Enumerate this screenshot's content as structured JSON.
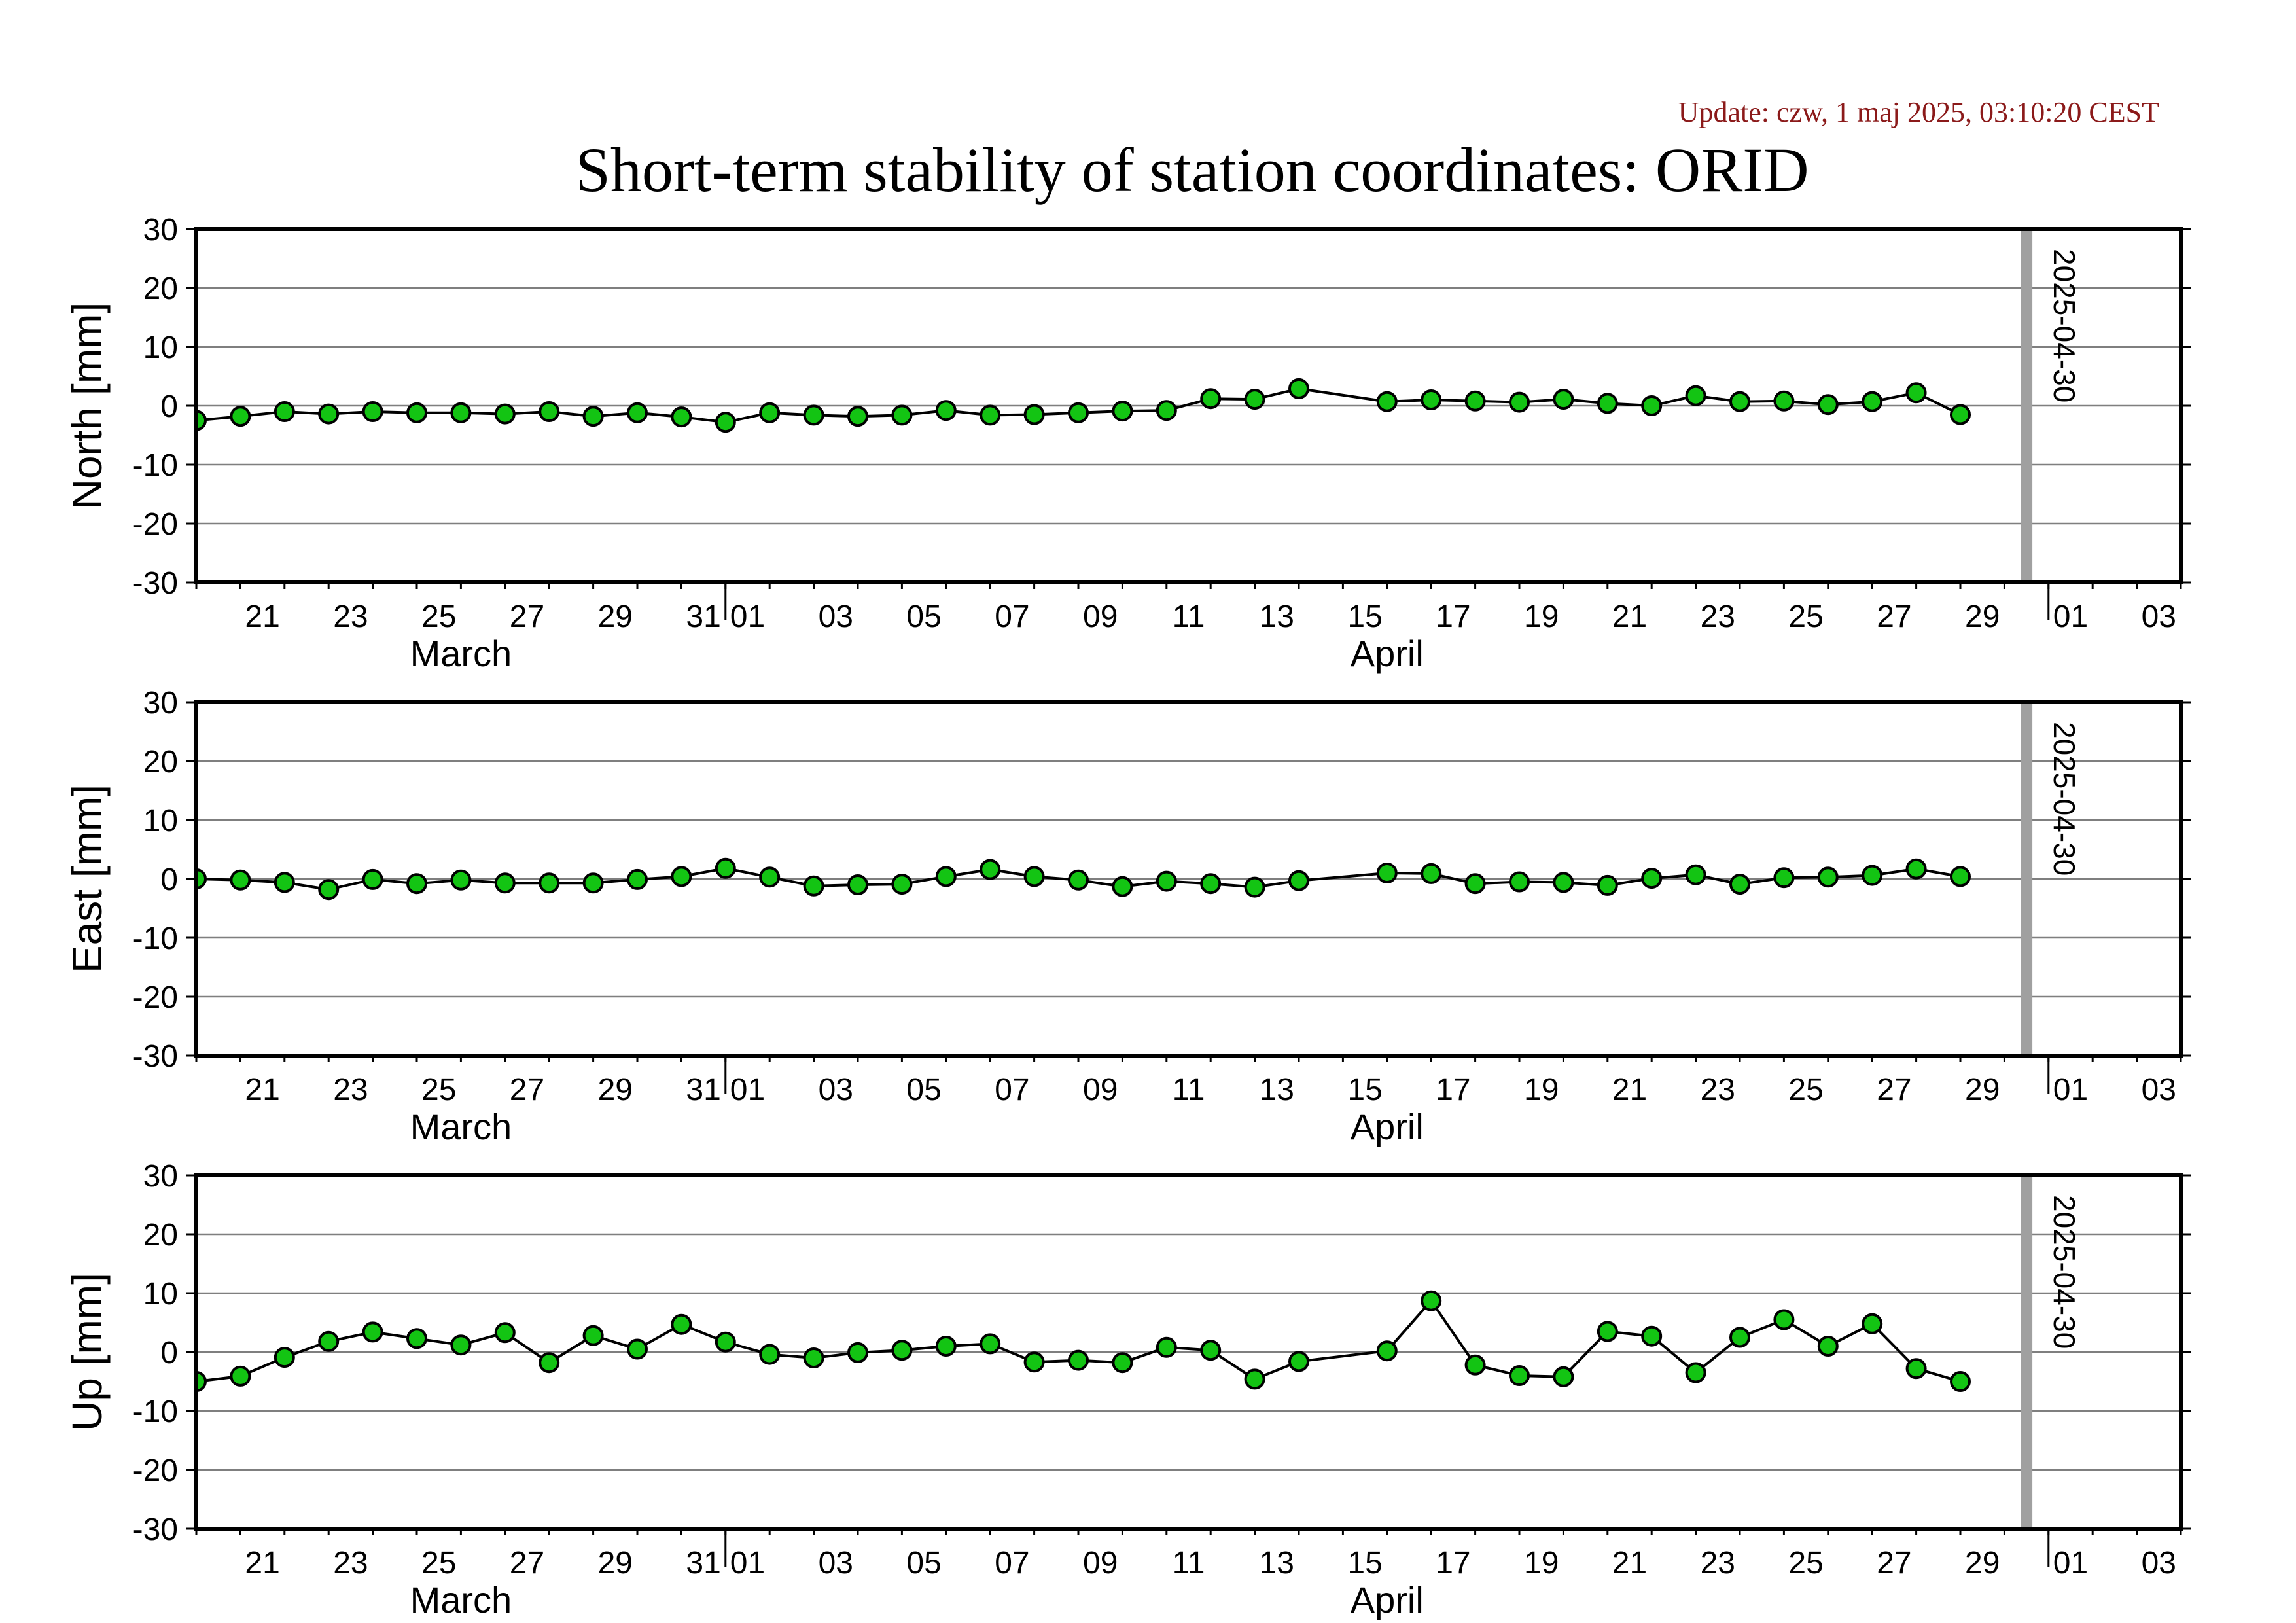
{
  "update_text": "Update: czw, 1 maj 2025, 03:10:20 CEST",
  "title": "Short-term stability of station coordinates: ORID",
  "colors": {
    "marker_fill": "#13c413",
    "marker_edge": "#000000",
    "line": "#000000",
    "grid": "#7f7f7f",
    "vline": "#a0a0a0",
    "update": "#8b1a1a"
  },
  "chart_data": [
    {
      "type": "line",
      "ylabel": "North [mm]",
      "ylim": [
        -30,
        30
      ],
      "yticks": [
        30,
        20,
        10,
        0,
        -10,
        -20,
        -30
      ],
      "x_range": [
        "2025-03-20",
        "2025-05-04"
      ],
      "x_tick_labels": [
        "21",
        "23",
        "25",
        "27",
        "29",
        "31",
        "01",
        "03",
        "05",
        "07",
        "09",
        "11",
        "13",
        "15",
        "17",
        "19",
        "21",
        "23",
        "25",
        "27",
        "29",
        "01",
        "03"
      ],
      "month_labels": [
        "March",
        "April"
      ],
      "marker_label": "2025-04-30",
      "grid": true,
      "x": [
        "2025-03-20",
        "2025-03-21",
        "2025-03-22",
        "2025-03-23",
        "2025-03-24",
        "2025-03-25",
        "2025-03-26",
        "2025-03-27",
        "2025-03-28",
        "2025-03-29",
        "2025-03-30",
        "2025-03-31",
        "2025-04-01",
        "2025-04-02",
        "2025-04-03",
        "2025-04-04",
        "2025-04-05",
        "2025-04-06",
        "2025-04-07",
        "2025-04-08",
        "2025-04-09",
        "2025-04-10",
        "2025-04-11",
        "2025-04-12",
        "2025-04-13",
        "2025-04-14",
        "2025-04-16",
        "2025-04-17",
        "2025-04-18",
        "2025-04-19",
        "2025-04-20",
        "2025-04-21",
        "2025-04-22",
        "2025-04-23",
        "2025-04-24",
        "2025-04-25",
        "2025-04-26",
        "2025-04-27",
        "2025-04-28",
        "2025-04-29"
      ],
      "values": [
        -2.5,
        -1.8,
        -1.0,
        -1.4,
        -1.0,
        -1.2,
        -1.2,
        -1.4,
        -1.0,
        -1.8,
        -1.2,
        -1.9,
        -2.8,
        -1.2,
        -1.6,
        -1.8,
        -1.6,
        -0.8,
        -1.6,
        -1.5,
        -1.2,
        -0.9,
        -0.8,
        1.2,
        1.1,
        2.9,
        0.7,
        1.0,
        0.8,
        0.6,
        1.1,
        0.4,
        0.0,
        1.7,
        0.7,
        0.8,
        0.2,
        0.7,
        2.2,
        -1.5
      ]
    },
    {
      "type": "line",
      "ylabel": "East [mm]",
      "ylim": [
        -30,
        30
      ],
      "yticks": [
        30,
        20,
        10,
        0,
        -10,
        -20,
        -30
      ],
      "x_range": [
        "2025-03-20",
        "2025-05-04"
      ],
      "x_tick_labels": [
        "21",
        "23",
        "25",
        "27",
        "29",
        "31",
        "01",
        "03",
        "05",
        "07",
        "09",
        "11",
        "13",
        "15",
        "17",
        "19",
        "21",
        "23",
        "25",
        "27",
        "29",
        "01",
        "03"
      ],
      "month_labels": [
        "March",
        "April"
      ],
      "marker_label": "2025-04-30",
      "grid": true,
      "x": [
        "2025-03-20",
        "2025-03-21",
        "2025-03-22",
        "2025-03-23",
        "2025-03-24",
        "2025-03-25",
        "2025-03-26",
        "2025-03-27",
        "2025-03-28",
        "2025-03-29",
        "2025-03-30",
        "2025-03-31",
        "2025-04-01",
        "2025-04-02",
        "2025-04-03",
        "2025-04-04",
        "2025-04-05",
        "2025-04-06",
        "2025-04-07",
        "2025-04-08",
        "2025-04-09",
        "2025-04-10",
        "2025-04-11",
        "2025-04-12",
        "2025-04-13",
        "2025-04-14",
        "2025-04-16",
        "2025-04-17",
        "2025-04-18",
        "2025-04-19",
        "2025-04-20",
        "2025-04-21",
        "2025-04-22",
        "2025-04-23",
        "2025-04-24",
        "2025-04-25",
        "2025-04-26",
        "2025-04-27",
        "2025-04-28",
        "2025-04-29"
      ],
      "values": [
        0.0,
        -0.2,
        -0.6,
        -1.8,
        -0.1,
        -0.8,
        -0.2,
        -0.7,
        -0.7,
        -0.7,
        -0.1,
        0.4,
        1.8,
        0.3,
        -1.2,
        -1.0,
        -0.9,
        0.4,
        1.6,
        0.4,
        -0.2,
        -1.3,
        -0.4,
        -0.8,
        -1.4,
        -0.3,
        1.0,
        0.9,
        -0.8,
        -0.5,
        -0.6,
        -1.1,
        0.1,
        0.7,
        -0.9,
        0.2,
        0.3,
        0.6,
        1.7,
        0.4
      ]
    },
    {
      "type": "line",
      "ylabel": "Up [mm]",
      "ylim": [
        -30,
        30
      ],
      "yticks": [
        30,
        20,
        10,
        0,
        -10,
        -20,
        -30
      ],
      "x_range": [
        "2025-03-20",
        "2025-05-04"
      ],
      "x_tick_labels": [
        "21",
        "23",
        "25",
        "27",
        "29",
        "31",
        "01",
        "03",
        "05",
        "07",
        "09",
        "11",
        "13",
        "15",
        "17",
        "19",
        "21",
        "23",
        "25",
        "27",
        "29",
        "01",
        "03"
      ],
      "month_labels": [
        "March",
        "April"
      ],
      "marker_label": "2025-04-30",
      "grid": true,
      "x": [
        "2025-03-20",
        "2025-03-21",
        "2025-03-22",
        "2025-03-23",
        "2025-03-24",
        "2025-03-25",
        "2025-03-26",
        "2025-03-27",
        "2025-03-28",
        "2025-03-29",
        "2025-03-30",
        "2025-03-31",
        "2025-04-01",
        "2025-04-02",
        "2025-04-03",
        "2025-04-04",
        "2025-04-05",
        "2025-04-06",
        "2025-04-07",
        "2025-04-08",
        "2025-04-09",
        "2025-04-10",
        "2025-04-11",
        "2025-04-12",
        "2025-04-13",
        "2025-04-14",
        "2025-04-16",
        "2025-04-17",
        "2025-04-18",
        "2025-04-19",
        "2025-04-20",
        "2025-04-21",
        "2025-04-22",
        "2025-04-23",
        "2025-04-24",
        "2025-04-25",
        "2025-04-26",
        "2025-04-27",
        "2025-04-28",
        "2025-04-29"
      ],
      "values": [
        -5.0,
        -4.1,
        -0.9,
        1.8,
        3.4,
        2.3,
        1.2,
        3.3,
        -1.8,
        2.8,
        0.5,
        4.7,
        1.7,
        -0.4,
        -1.0,
        -0.1,
        0.3,
        1.0,
        1.4,
        -1.7,
        -1.4,
        -1.8,
        0.8,
        0.3,
        -4.6,
        -1.6,
        0.2,
        8.7,
        -2.2,
        -4.0,
        -4.2,
        3.5,
        2.7,
        -3.5,
        2.5,
        5.5,
        1.0,
        4.8,
        -2.8,
        -5.0
      ]
    }
  ]
}
